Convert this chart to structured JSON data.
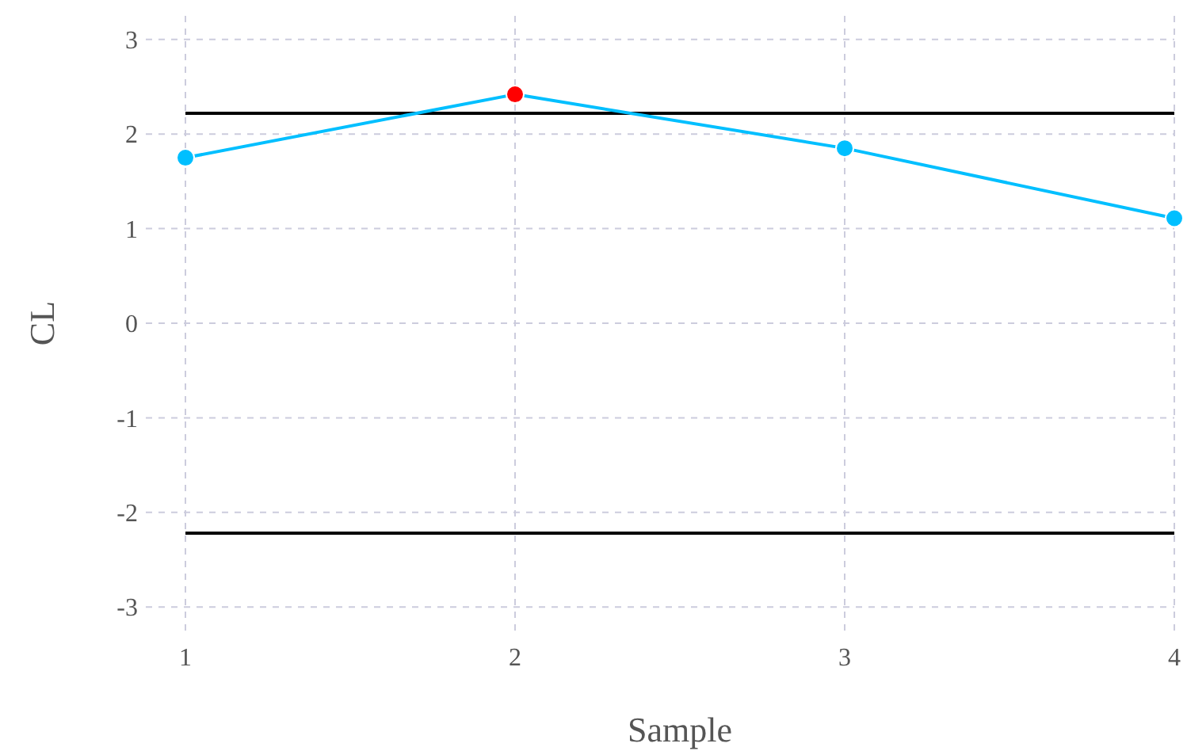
{
  "chart_data": {
    "type": "line",
    "xlabel": "Sample",
    "ylabel": "CL",
    "x": [
      1,
      2,
      3,
      4
    ],
    "series": [
      {
        "color": "#00bfff",
        "colors": [
          "#00bfff",
          "#ff0000",
          "#00bfff",
          "#00bfff"
        ],
        "values": [
          1.75,
          2.42,
          1.85,
          1.11
        ]
      }
    ],
    "xlim": [
      1,
      4
    ],
    "xticks": [
      1,
      2,
      3,
      4
    ],
    "ylim": [
      -3.25,
      3.25
    ],
    "yticks": [
      -3,
      -2,
      -1,
      0,
      1,
      2,
      3
    ],
    "grid": true,
    "marker": "circle",
    "line_style": "solid",
    "ref_lines": [
      {
        "axis": "y",
        "value": 2.22,
        "color": "#000000"
      },
      {
        "axis": "y",
        "value": -2.22,
        "color": "#000000"
      }
    ]
  }
}
